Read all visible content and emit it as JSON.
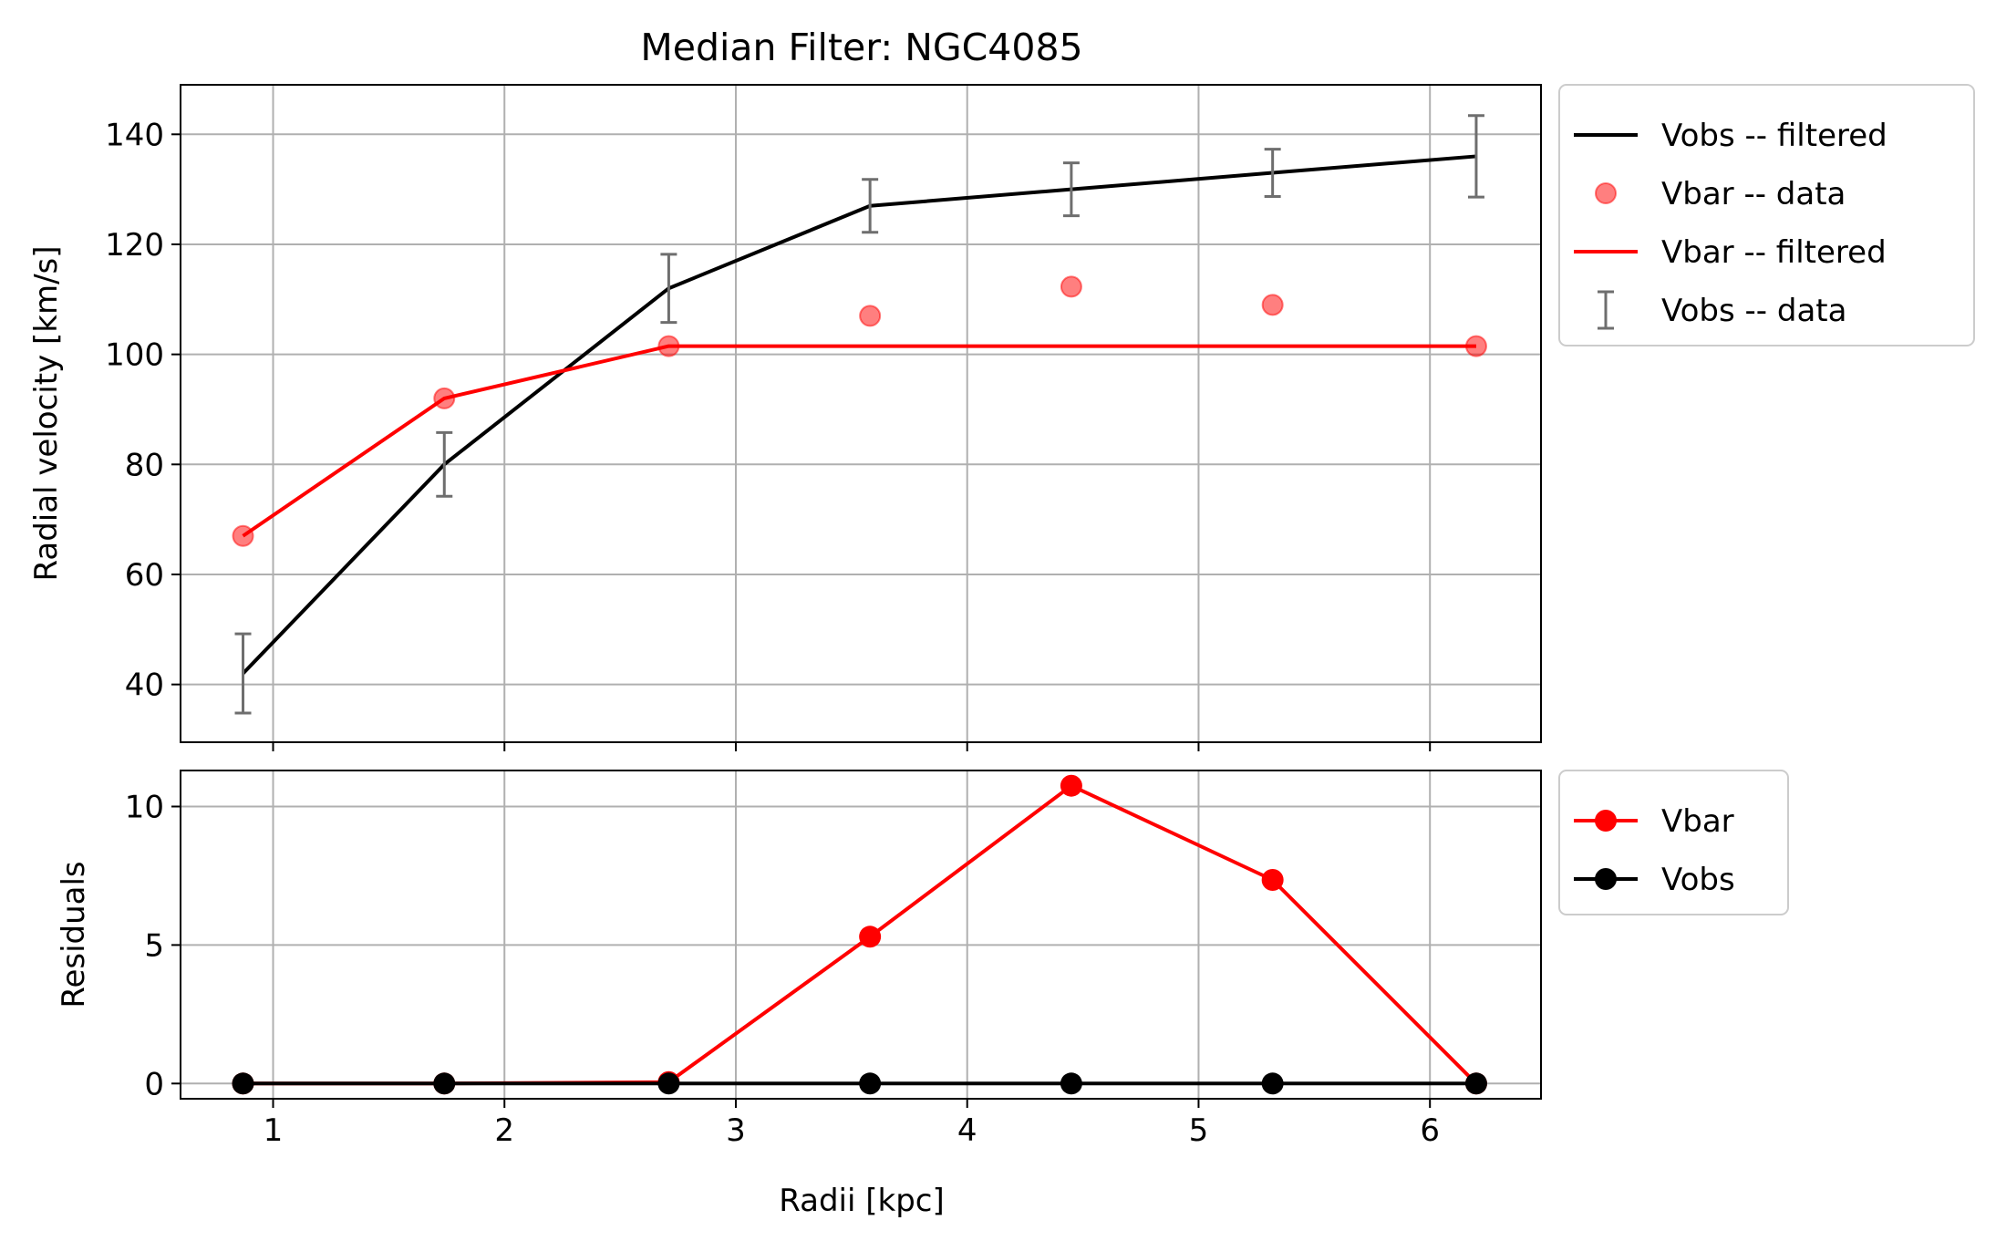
{
  "chart_data": [
    {
      "type": "line",
      "title": "Median Filter: NGC4085",
      "xlabel": "",
      "ylabel": "Radial velocity [km/s]",
      "xlim": [
        0.6,
        6.48
      ],
      "ylim": [
        29.5,
        149
      ],
      "xticks": [
        1,
        2,
        3,
        4,
        5,
        6
      ],
      "yticks": [
        40,
        60,
        80,
        100,
        120,
        140
      ],
      "grid": true,
      "legend_position": "outside-right-top",
      "x": [
        0.87,
        1.74,
        2.71,
        3.58,
        4.45,
        5.32,
        6.2
      ],
      "series": [
        {
          "name": "Vobs -- filtered",
          "kind": "line",
          "color": "#000000",
          "values": [
            42,
            80,
            112,
            127,
            130,
            133,
            136
          ]
        },
        {
          "name": "Vbar -- data",
          "kind": "scatter",
          "color": "#ff0000",
          "values": [
            67,
            92,
            101.5,
            107,
            112.3,
            109,
            101.5
          ]
        },
        {
          "name": "Vbar -- filtered",
          "kind": "line",
          "color": "#ff0000",
          "values": [
            67,
            92,
            101.5,
            101.5,
            101.5,
            101.5,
            101.5
          ]
        },
        {
          "name": "Vobs -- data",
          "kind": "errorbar",
          "color": "#6e6e6e",
          "values": [
            42,
            80,
            112,
            127,
            130,
            133,
            136
          ],
          "errors": [
            7.2,
            5.8,
            6.2,
            4.8,
            4.8,
            4.3,
            7.4
          ]
        }
      ]
    },
    {
      "type": "line",
      "title": "",
      "xlabel": "Radii [kpc]",
      "ylabel": "Residuals",
      "xlim": [
        0.6,
        6.48
      ],
      "ylim": [
        -0.55,
        11.3
      ],
      "xticks": [
        1,
        2,
        3,
        4,
        5,
        6
      ],
      "yticks": [
        0,
        5,
        10
      ],
      "grid": true,
      "legend_position": "outside-right-top",
      "x": [
        0.87,
        1.74,
        2.71,
        3.58,
        4.45,
        5.32,
        6.2
      ],
      "series": [
        {
          "name": "Vbar",
          "kind": "line-marker",
          "color": "#ff0000",
          "values": [
            0,
            0,
            0.05,
            5.3,
            10.75,
            7.35,
            0
          ]
        },
        {
          "name": "Vobs",
          "kind": "line-marker",
          "color": "#000000",
          "values": [
            0,
            0,
            0,
            0,
            0,
            0,
            0
          ]
        }
      ]
    }
  ]
}
